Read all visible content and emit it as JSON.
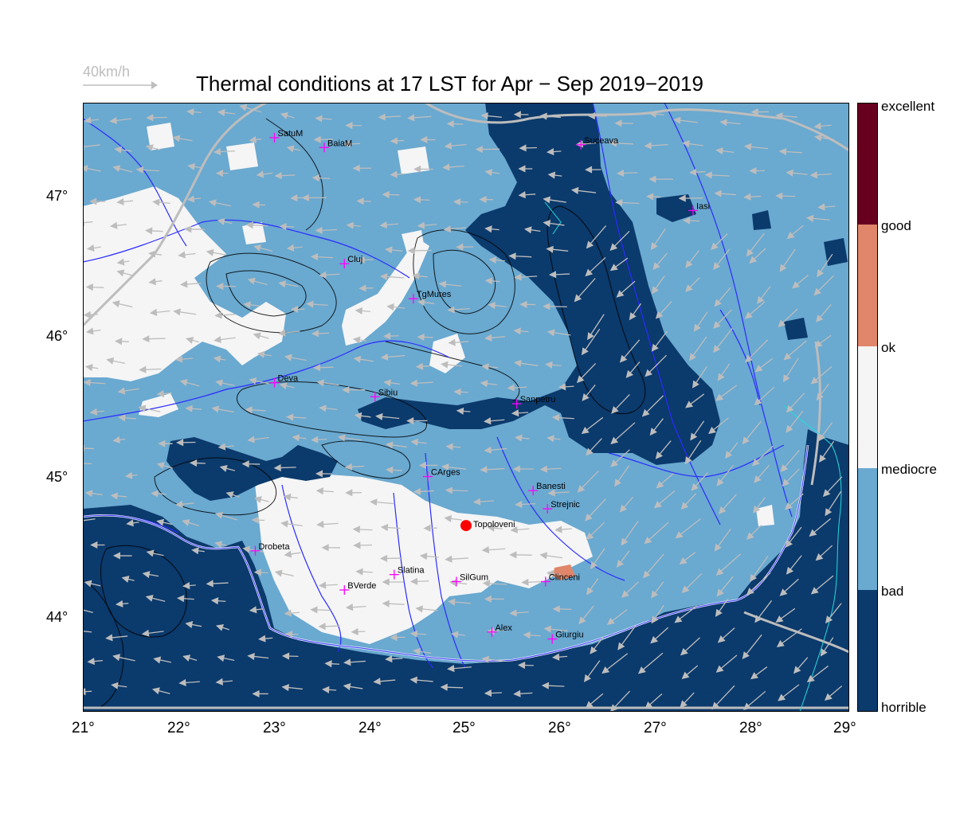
{
  "title": "Thermal conditions at 17 LST for Apr − Sep  2019−2019",
  "wind_scale": {
    "label": "40km/h",
    "icon": "arrow-right-icon"
  },
  "axes": {
    "x_ticks": [
      "21°",
      "22°",
      "23°",
      "24°",
      "25°",
      "26°",
      "27°",
      "28°",
      "29°"
    ],
    "y_ticks": [
      "47°",
      "46°",
      "45°",
      "44°"
    ],
    "lon_range": [
      21,
      29
    ],
    "lat_range": [
      43.35,
      47.7
    ]
  },
  "legend": {
    "classes": [
      {
        "label": "excellent",
        "color": "#67001f"
      },
      {
        "label": "good",
        "color": "#e0866a"
      },
      {
        "label": "ok",
        "color": "#f5f5f5"
      },
      {
        "label": "mediocre",
        "color": "#6aa9d0"
      },
      {
        "label": "bad",
        "color": "#6aa9d0"
      },
      {
        "label": "horrible",
        "color": "#0b3a6c"
      }
    ],
    "band_colors": [
      "#67001f",
      "#e0866a",
      "#f5f5f5",
      "#6aa9d0",
      "#0b3a6c"
    ]
  },
  "colors": {
    "horrible": "#0b3a6c",
    "bad": "#6aa9d0",
    "ok": "#f5f5f5",
    "good": "#e0866a",
    "river": "#2b2bff",
    "border": "#ffffff",
    "wind": "#bdbdbd",
    "marker": "#ff00ff",
    "highlight": "#ff0000",
    "lakes": "#22dddd"
  },
  "places": [
    {
      "name": "SatuM",
      "lon": 23.0,
      "lat": 47.45
    },
    {
      "name": "BaiaM",
      "lon": 23.52,
      "lat": 47.38
    },
    {
      "name": "Suceava",
      "lon": 26.2,
      "lat": 47.4
    },
    {
      "name": "Iasi",
      "lon": 27.37,
      "lat": 46.93
    },
    {
      "name": "Cluj",
      "lon": 23.73,
      "lat": 46.55
    },
    {
      "name": "TgMures",
      "lon": 24.45,
      "lat": 46.3
    },
    {
      "name": "Deva",
      "lon": 23.0,
      "lat": 45.7
    },
    {
      "name": "Sibiu",
      "lon": 24.05,
      "lat": 45.6
    },
    {
      "name": "Sanpetru",
      "lon": 25.53,
      "lat": 45.55
    },
    {
      "name": "CArges",
      "lon": 24.6,
      "lat": 45.03
    },
    {
      "name": "Banesti",
      "lon": 25.7,
      "lat": 44.93
    },
    {
      "name": "Strejnic",
      "lon": 25.85,
      "lat": 44.8
    },
    {
      "name": "Drobeta",
      "lon": 22.8,
      "lat": 44.5
    },
    {
      "name": "Slatina",
      "lon": 24.25,
      "lat": 44.33
    },
    {
      "name": "SilGum",
      "lon": 24.9,
      "lat": 44.28
    },
    {
      "name": "Clinceni",
      "lon": 25.83,
      "lat": 44.28
    },
    {
      "name": "BVerde",
      "lon": 23.73,
      "lat": 44.22
    },
    {
      "name": "Alex",
      "lon": 25.27,
      "lat": 43.92
    },
    {
      "name": "Giurgiu",
      "lon": 25.9,
      "lat": 43.87
    }
  ],
  "site": {
    "name": "Topoloveni",
    "lon": 25.0,
    "lat": 44.68
  }
}
